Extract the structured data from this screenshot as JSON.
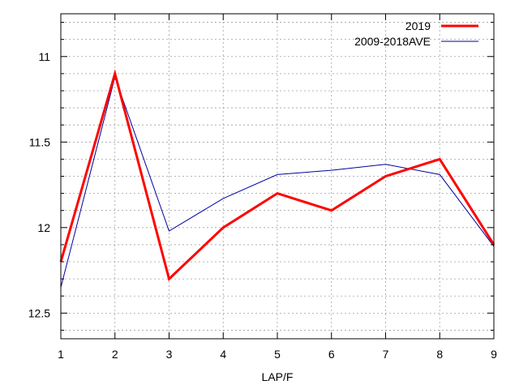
{
  "chart_data": {
    "type": "line",
    "title": "",
    "xlabel": "LAP/F",
    "ylabel": "",
    "x": [
      1,
      2,
      3,
      4,
      5,
      6,
      7,
      8,
      9
    ],
    "xlim": [
      1,
      9
    ],
    "ylim": [
      10.75,
      12.65
    ],
    "y_inverted": true,
    "x_ticks": [
      1,
      2,
      3,
      4,
      5,
      6,
      7,
      8,
      9
    ],
    "y_ticks": [
      11,
      11.5,
      12,
      12.5
    ],
    "y_tick_labels": [
      "11",
      "11.5",
      "12",
      "12.5"
    ],
    "grid": true,
    "legend_position": "top-right",
    "series": [
      {
        "name": "2019",
        "color": "#ff0000",
        "values": [
          12.2,
          11.1,
          12.3,
          12.0,
          11.8,
          11.9,
          11.7,
          11.6,
          12.1
        ]
      },
      {
        "name": "2009-2018AVE",
        "color": "#0000a0",
        "values": [
          12.35,
          11.12,
          12.02,
          11.83,
          11.69,
          11.665,
          11.63,
          11.69,
          12.11
        ]
      }
    ]
  }
}
